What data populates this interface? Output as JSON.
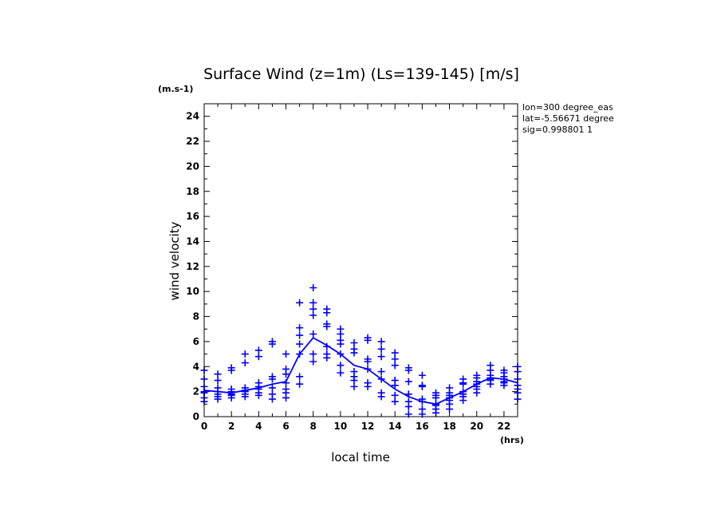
{
  "chart_data": {
    "type": "scatter",
    "title": "Surface Wind (z=1m) (Ls=139-145) [m/s]",
    "y_unit": "(m.s-1)",
    "x_unit": "(hrs)",
    "xlabel": "local time",
    "ylabel": "wind velocity",
    "xlim": [
      0,
      23
    ],
    "ylim": [
      0,
      25
    ],
    "x_ticks": [
      0,
      2,
      4,
      6,
      8,
      10,
      12,
      14,
      16,
      18,
      20,
      22
    ],
    "y_ticks": [
      0,
      2,
      4,
      6,
      8,
      10,
      12,
      14,
      16,
      18,
      20,
      22,
      24
    ],
    "info_lines": [
      "lon=300 degree_eas",
      "lat=-5.56671 degree",
      "sig=0.998801 1"
    ],
    "marker_color": "#0000ff",
    "line_color": "#0000ff",
    "mean_line": {
      "x": [
        0,
        1,
        2,
        3,
        4,
        5,
        6,
        7,
        8,
        9,
        10,
        11,
        12,
        13,
        14,
        15,
        16,
        17,
        18,
        19,
        20,
        21,
        22,
        23
      ],
      "y": [
        2.1,
        2.0,
        1.9,
        2.1,
        2.3,
        2.6,
        2.8,
        5.0,
        6.3,
        5.7,
        5.0,
        4.1,
        3.8,
        3.0,
        2.2,
        1.6,
        1.2,
        1.0,
        1.5,
        2.0,
        2.6,
        3.1,
        3.0,
        2.7
      ]
    },
    "points": {
      "x": [
        0,
        0,
        0,
        0,
        0,
        0,
        0,
        1,
        1,
        1,
        1,
        1,
        1,
        1,
        2,
        2,
        2,
        2,
        2,
        2,
        2,
        3,
        3,
        3,
        3,
        3,
        3,
        3,
        4,
        4,
        4,
        4,
        4,
        4,
        4,
        5,
        5,
        5,
        5,
        5,
        5,
        5,
        6,
        6,
        6,
        6,
        6,
        6,
        6,
        7,
        7,
        7,
        7,
        7,
        7,
        7,
        8,
        8,
        8,
        8,
        8,
        8,
        8,
        9,
        9,
        9,
        9,
        9,
        9,
        9,
        10,
        10,
        10,
        10,
        10,
        10,
        10,
        11,
        11,
        11,
        11,
        11,
        11,
        11,
        12,
        12,
        12,
        12,
        12,
        12,
        12,
        13,
        13,
        13,
        13,
        13,
        13,
        13,
        14,
        14,
        14,
        14,
        14,
        14,
        14,
        15,
        15,
        15,
        15,
        15,
        15,
        15,
        16,
        16,
        16,
        16,
        16,
        16,
        16,
        17,
        17,
        17,
        17,
        17,
        17,
        17,
        18,
        18,
        18,
        18,
        18,
        18,
        18,
        19,
        19,
        19,
        19,
        19,
        19,
        19,
        20,
        20,
        20,
        20,
        20,
        20,
        20,
        21,
        21,
        21,
        21,
        21,
        21,
        21,
        22,
        22,
        22,
        22,
        22,
        22,
        22,
        23,
        23,
        23,
        23,
        23,
        23,
        23
      ],
      "y": [
        3.7,
        3.0,
        2.4,
        2.0,
        1.9,
        1.5,
        1.2,
        3.4,
        2.9,
        2.3,
        2.0,
        1.8,
        1.6,
        1.4,
        3.9,
        3.7,
        2.2,
        2.0,
        1.8,
        1.7,
        1.5,
        5.0,
        4.3,
        2.3,
        2.1,
        2.0,
        1.8,
        1.6,
        5.3,
        4.8,
        2.7,
        2.4,
        2.2,
        1.9,
        1.7,
        6.0,
        5.8,
        3.2,
        3.0,
        2.3,
        1.8,
        1.4,
        5.0,
        3.8,
        3.4,
        2.7,
        2.2,
        1.9,
        1.5,
        9.1,
        7.1,
        6.5,
        5.8,
        5.0,
        3.2,
        2.6,
        10.3,
        9.1,
        8.6,
        8.1,
        6.6,
        5.0,
        4.4,
        8.6,
        8.3,
        7.4,
        7.2,
        5.6,
        5.0,
        4.7,
        7.0,
        6.6,
        6.1,
        5.8,
        5.0,
        4.1,
        3.5,
        5.9,
        5.4,
        5.1,
        3.6,
        3.2,
        2.9,
        2.4,
        6.3,
        6.1,
        4.6,
        4.4,
        3.8,
        2.7,
        2.4,
        6.0,
        5.4,
        4.8,
        3.6,
        3.0,
        1.9,
        1.6,
        5.1,
        4.6,
        4.1,
        2.9,
        2.5,
        1.7,
        1.2,
        3.9,
        3.7,
        2.8,
        1.8,
        1.2,
        0.8,
        0.2,
        3.3,
        2.5,
        2.4,
        1.4,
        1.2,
        0.6,
        0.2,
        1.9,
        1.7,
        1.5,
        1.0,
        0.9,
        0.6,
        0.3,
        2.3,
        1.9,
        1.7,
        1.5,
        1.3,
        1.0,
        0.6,
        3.0,
        2.7,
        2.6,
        2.0,
        1.8,
        1.6,
        1.3,
        3.3,
        3.1,
        2.8,
        2.6,
        2.4,
        2.2,
        1.9,
        4.1,
        3.7,
        3.3,
        3.1,
        3.0,
        2.9,
        2.6,
        3.7,
        3.5,
        3.2,
        3.0,
        2.8,
        2.7,
        2.5,
        4.0,
        3.6,
        3.0,
        2.5,
        2.2,
        1.9,
        1.4
      ]
    }
  }
}
